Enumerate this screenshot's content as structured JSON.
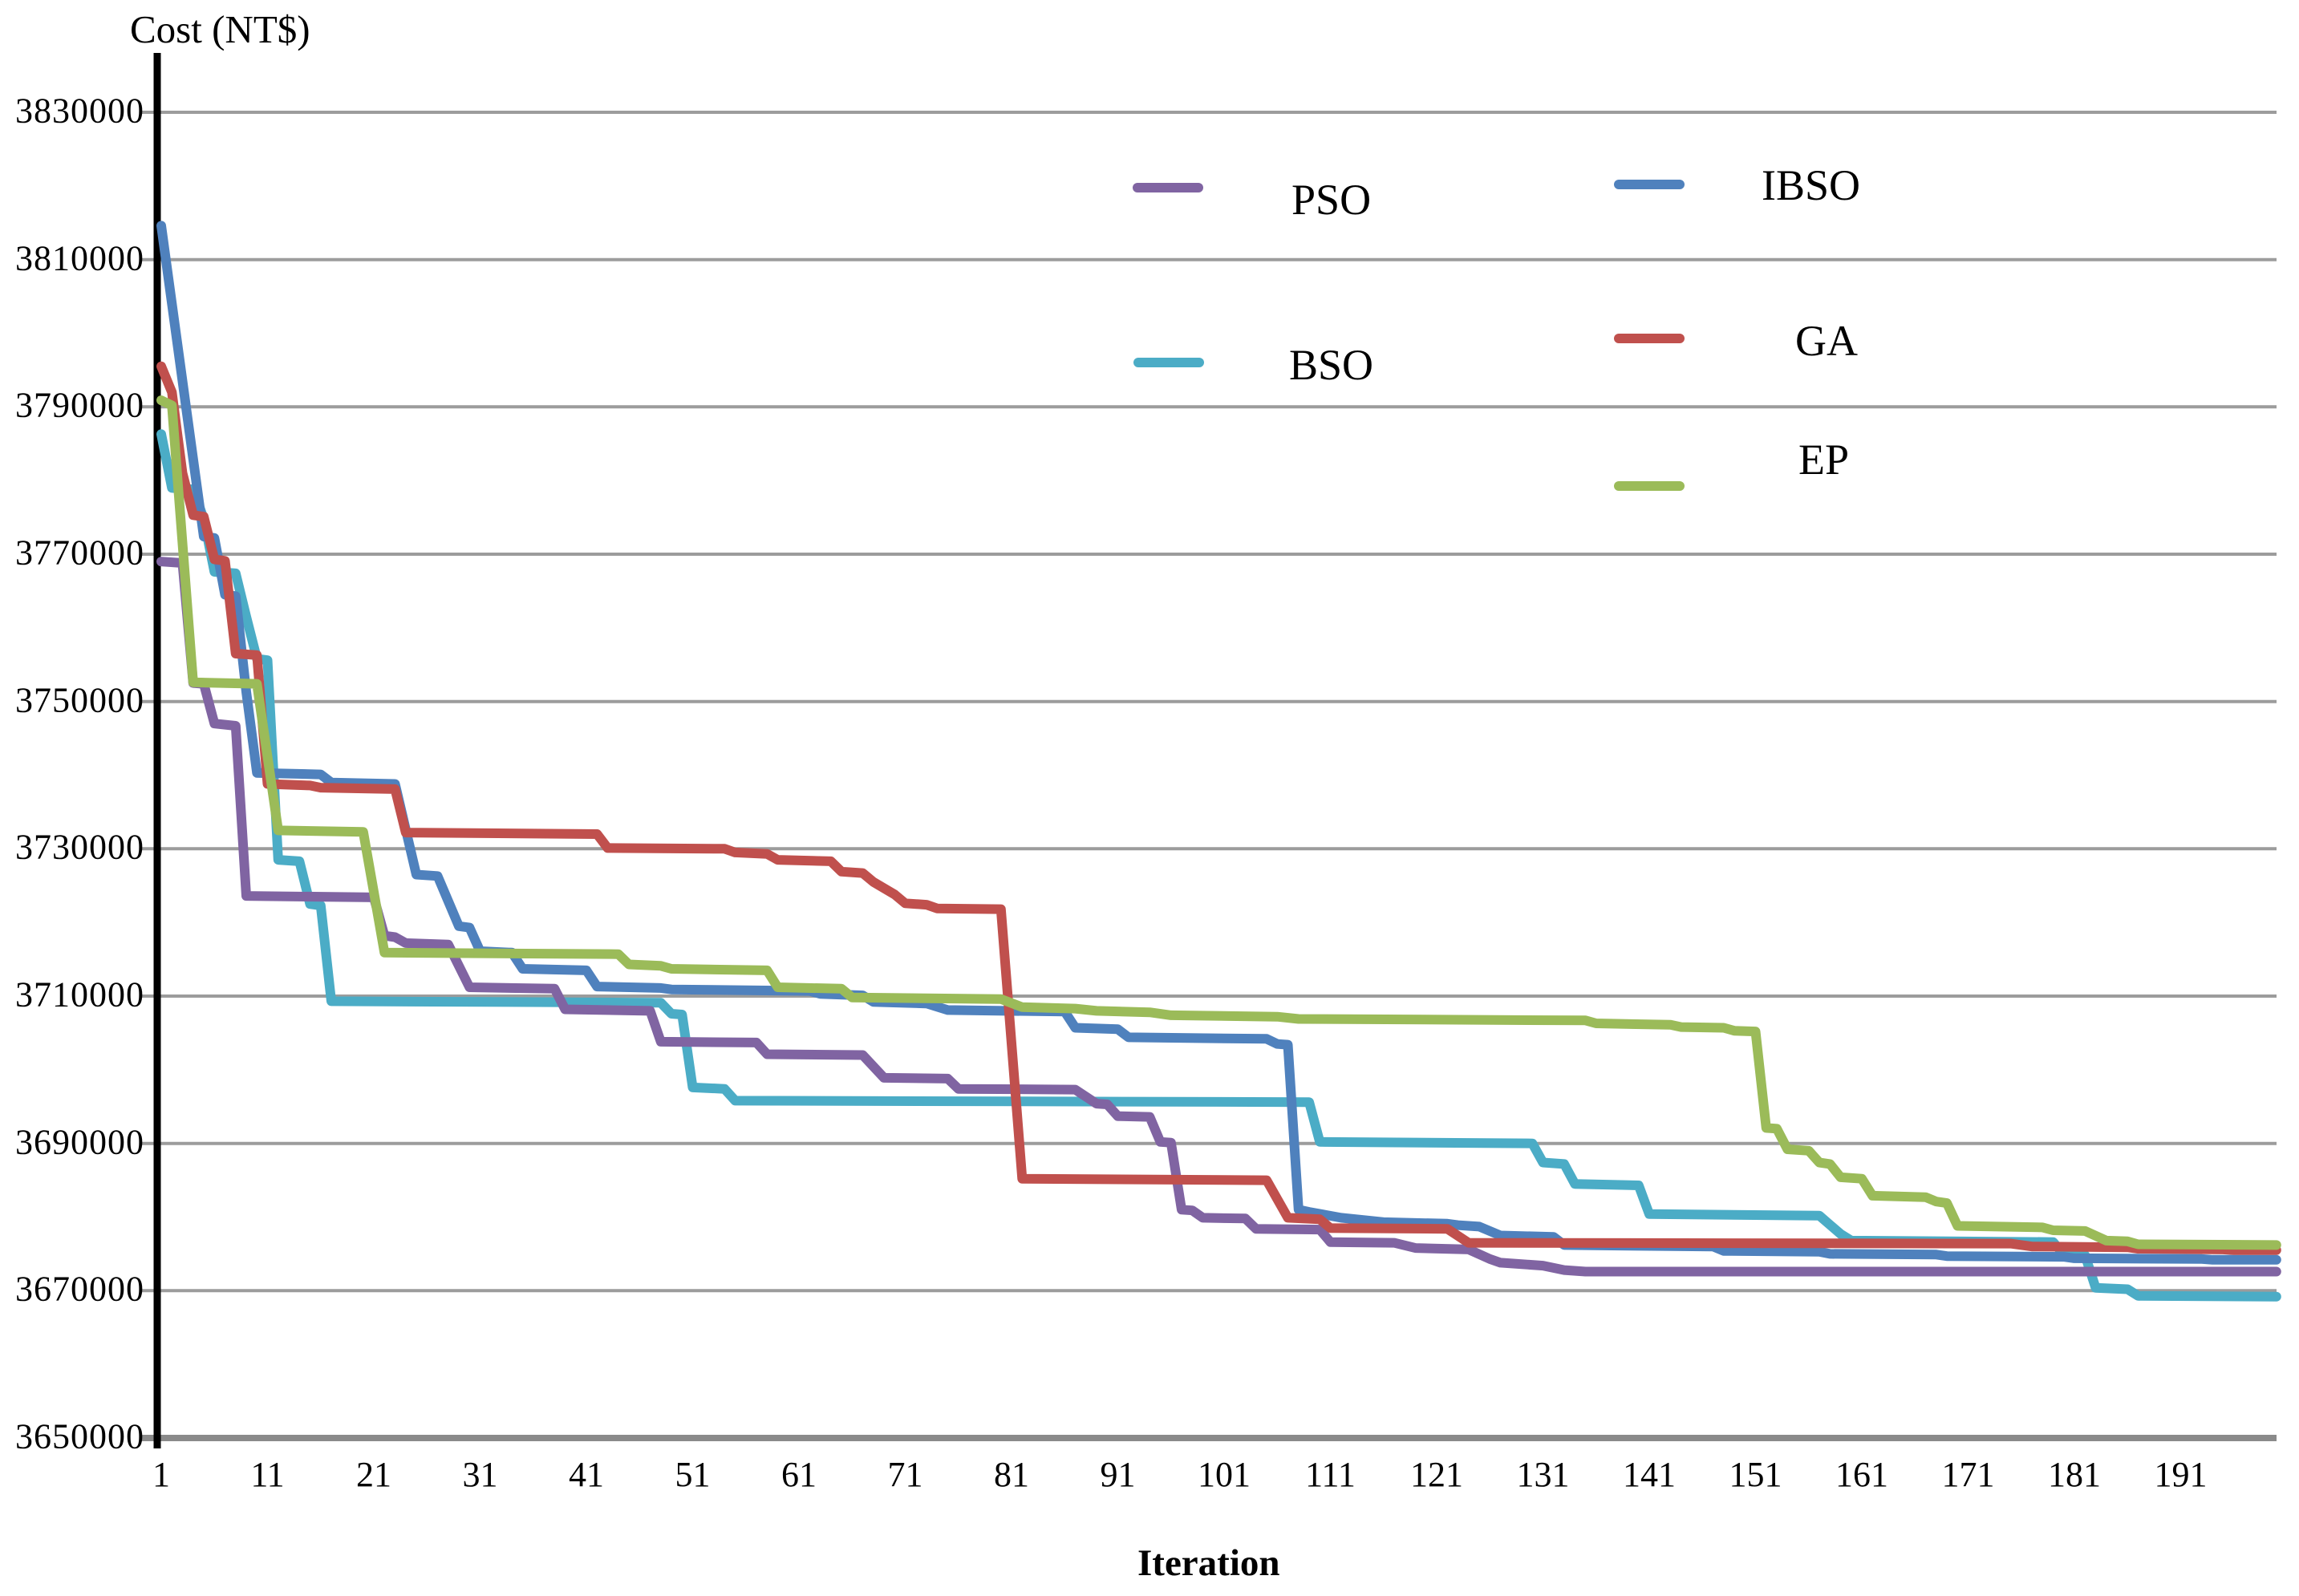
{
  "page": {
    "background": "#ffffff"
  },
  "axes": {
    "y_title": "Cost (NT$)",
    "x_title": "Iteration"
  },
  "legend": {
    "position": "upper-right",
    "columns": 2,
    "items": [
      {
        "label": "PSO",
        "color": "#8064A2"
      },
      {
        "label": "IBSO",
        "color": "#4F81BD"
      },
      {
        "label": "BSO",
        "color": "#4BACC6"
      },
      {
        "label": "GA",
        "color": "#C0504D"
      },
      {
        "label": "EP",
        "color": "#9BBB59"
      }
    ]
  },
  "chart_data": {
    "type": "line",
    "title": "Cost (NT$)",
    "xlabel": "Iteration",
    "ylabel": "Cost (NT$)",
    "xlim": [
      1,
      200
    ],
    "ylim": [
      3650000,
      3830000
    ],
    "yticks": [
      3650000,
      3670000,
      3690000,
      3710000,
      3730000,
      3750000,
      3770000,
      3790000,
      3810000,
      3830000
    ],
    "xticks": [
      1,
      11,
      21,
      31,
      41,
      51,
      61,
      71,
      81,
      91,
      101,
      111,
      121,
      131,
      141,
      151,
      161,
      171,
      181,
      191
    ],
    "grid": true,
    "gridline_color": "#9C9C9C",
    "baseline_color": "#8A8A8A",
    "axis_color": "#000000",
    "series": [
      {
        "name": "BSO",
        "color": "#4BACC6",
        "points": [
          [
            1,
            3786300
          ],
          [
            2,
            3779000
          ],
          [
            4,
            3778800
          ],
          [
            5,
            3774800
          ],
          [
            6,
            3767600
          ],
          [
            8,
            3767400
          ],
          [
            9,
            3761500
          ],
          [
            10,
            3755800
          ],
          [
            11,
            3755600
          ],
          [
            12,
            3728500
          ],
          [
            14,
            3728300
          ],
          [
            15,
            3722500
          ],
          [
            16,
            3722300
          ],
          [
            17,
            3709300
          ],
          [
            48,
            3709100
          ],
          [
            49,
            3707600
          ],
          [
            50,
            3707500
          ],
          [
            51,
            3697600
          ],
          [
            54,
            3697400
          ],
          [
            55,
            3695800
          ],
          [
            109,
            3695600
          ],
          [
            110,
            3690200
          ],
          [
            130,
            3690000
          ],
          [
            131,
            3687400
          ],
          [
            133,
            3687200
          ],
          [
            134,
            3684500
          ],
          [
            140,
            3684300
          ],
          [
            141,
            3680400
          ],
          [
            157,
            3680200
          ],
          [
            159,
            3677700
          ],
          [
            160,
            3676800
          ],
          [
            179,
            3676600
          ],
          [
            180,
            3674900
          ],
          [
            182,
            3674800
          ],
          [
            183,
            3670400
          ],
          [
            186,
            3670200
          ],
          [
            187,
            3669300
          ],
          [
            200,
            3669200
          ]
        ]
      },
      {
        "name": "IBSO",
        "color": "#4F81BD",
        "points": [
          [
            1,
            3814600
          ],
          [
            5,
            3772400
          ],
          [
            6,
            3772200
          ],
          [
            7,
            3764500
          ],
          [
            8,
            3764300
          ],
          [
            9,
            3751300
          ],
          [
            10,
            3740300
          ],
          [
            16,
            3740100
          ],
          [
            17,
            3739000
          ],
          [
            23,
            3738800
          ],
          [
            25,
            3726500
          ],
          [
            27,
            3726300
          ],
          [
            29,
            3719500
          ],
          [
            30,
            3719300
          ],
          [
            31,
            3716100
          ],
          [
            34,
            3715900
          ],
          [
            35,
            3713700
          ],
          [
            41,
            3713500
          ],
          [
            42,
            3711300
          ],
          [
            48,
            3711100
          ],
          [
            49,
            3710900
          ],
          [
            62,
            3710700
          ],
          [
            63,
            3710300
          ],
          [
            67,
            3710100
          ],
          [
            68,
            3709200
          ],
          [
            73,
            3709000
          ],
          [
            75,
            3708100
          ],
          [
            86,
            3707900
          ],
          [
            87,
            3705700
          ],
          [
            91,
            3705500
          ],
          [
            92,
            3704400
          ],
          [
            105,
            3704200
          ],
          [
            106,
            3703500
          ],
          [
            107,
            3703400
          ],
          [
            108,
            3681000
          ],
          [
            109,
            3680700
          ],
          [
            112,
            3679900
          ],
          [
            116,
            3679300
          ],
          [
            122,
            3679100
          ],
          [
            123,
            3678900
          ],
          [
            125,
            3678700
          ],
          [
            127,
            3677500
          ],
          [
            132,
            3677300
          ],
          [
            133,
            3676200
          ],
          [
            147,
            3676000
          ],
          [
            148,
            3675400
          ],
          [
            157,
            3675300
          ],
          [
            158,
            3675000
          ],
          [
            168,
            3674900
          ],
          [
            169,
            3674700
          ],
          [
            180,
            3674600
          ],
          [
            181,
            3674400
          ],
          [
            193,
            3674300
          ],
          [
            194,
            3674200
          ],
          [
            200,
            3674200
          ]
        ]
      },
      {
        "name": "PSO",
        "color": "#8064A2",
        "points": [
          [
            1,
            3769000
          ],
          [
            3,
            3768800
          ],
          [
            4,
            3752500
          ],
          [
            5,
            3752400
          ],
          [
            6,
            3747000
          ],
          [
            8,
            3746700
          ],
          [
            9,
            3723600
          ],
          [
            21,
            3723400
          ],
          [
            22,
            3718200
          ],
          [
            23,
            3718000
          ],
          [
            24,
            3717200
          ],
          [
            28,
            3717000
          ],
          [
            30,
            3711200
          ],
          [
            38,
            3711000
          ],
          [
            39,
            3708200
          ],
          [
            47,
            3708000
          ],
          [
            48,
            3703800
          ],
          [
            57,
            3703700
          ],
          [
            58,
            3702100
          ],
          [
            67,
            3702000
          ],
          [
            69,
            3698900
          ],
          [
            75,
            3698800
          ],
          [
            76,
            3697400
          ],
          [
            87,
            3697300
          ],
          [
            89,
            3695400
          ],
          [
            90,
            3695300
          ],
          [
            91,
            3693700
          ],
          [
            94,
            3693600
          ],
          [
            95,
            3690200
          ],
          [
            96,
            3690100
          ],
          [
            97,
            3681000
          ],
          [
            98,
            3680900
          ],
          [
            99,
            3679900
          ],
          [
            103,
            3679800
          ],
          [
            104,
            3678400
          ],
          [
            110,
            3678300
          ],
          [
            111,
            3676600
          ],
          [
            117,
            3676500
          ],
          [
            119,
            3675800
          ],
          [
            124,
            3675600
          ],
          [
            126,
            3674300
          ],
          [
            127,
            3673800
          ],
          [
            131,
            3673400
          ],
          [
            133,
            3672800
          ],
          [
            135,
            3672600
          ],
          [
            200,
            3672600
          ]
        ]
      },
      {
        "name": "GA",
        "color": "#C0504D",
        "points": [
          [
            1,
            3795500
          ],
          [
            2,
            3792000
          ],
          [
            3,
            3781000
          ],
          [
            4,
            3775300
          ],
          [
            5,
            3775100
          ],
          [
            6,
            3769300
          ],
          [
            7,
            3769100
          ],
          [
            8,
            3756500
          ],
          [
            10,
            3756300
          ],
          [
            11,
            3738800
          ],
          [
            15,
            3738600
          ],
          [
            16,
            3738300
          ],
          [
            23,
            3738100
          ],
          [
            24,
            3732200
          ],
          [
            42,
            3732000
          ],
          [
            43,
            3730100
          ],
          [
            54,
            3730000
          ],
          [
            55,
            3729500
          ],
          [
            58,
            3729300
          ],
          [
            59,
            3728500
          ],
          [
            64,
            3728300
          ],
          [
            65,
            3726900
          ],
          [
            67,
            3726700
          ],
          [
            68,
            3725500
          ],
          [
            70,
            3723800
          ],
          [
            71,
            3722600
          ],
          [
            73,
            3722400
          ],
          [
            74,
            3721900
          ],
          [
            80,
            3721800
          ],
          [
            82,
            3685200
          ],
          [
            105,
            3685000
          ],
          [
            107,
            3679900
          ],
          [
            110,
            3679700
          ],
          [
            111,
            3678500
          ],
          [
            122,
            3678400
          ],
          [
            124,
            3676500
          ],
          [
            175,
            3676400
          ],
          [
            177,
            3676000
          ],
          [
            186,
            3675900
          ],
          [
            187,
            3675700
          ],
          [
            195,
            3675600
          ],
          [
            196,
            3675500
          ],
          [
            200,
            3675500
          ]
        ]
      },
      {
        "name": "EP",
        "color": "#9BBB59",
        "points": [
          [
            1,
            3790900
          ],
          [
            2,
            3790200
          ],
          [
            4,
            3752600
          ],
          [
            10,
            3752400
          ],
          [
            12,
            3732500
          ],
          [
            20,
            3732300
          ],
          [
            22,
            3715900
          ],
          [
            44,
            3715700
          ],
          [
            45,
            3714300
          ],
          [
            48,
            3714100
          ],
          [
            49,
            3713700
          ],
          [
            58,
            3713500
          ],
          [
            59,
            3711200
          ],
          [
            65,
            3711000
          ],
          [
            66,
            3709800
          ],
          [
            80,
            3709600
          ],
          [
            82,
            3708500
          ],
          [
            87,
            3708300
          ],
          [
            89,
            3708000
          ],
          [
            94,
            3707800
          ],
          [
            96,
            3707400
          ],
          [
            106,
            3707200
          ],
          [
            108,
            3706900
          ],
          [
            135,
            3706700
          ],
          [
            136,
            3706300
          ],
          [
            143,
            3706100
          ],
          [
            144,
            3705800
          ],
          [
            148,
            3705700
          ],
          [
            149,
            3705300
          ],
          [
            151,
            3705200
          ],
          [
            152,
            3692100
          ],
          [
            153,
            3692000
          ],
          [
            154,
            3689200
          ],
          [
            156,
            3689000
          ],
          [
            157,
            3687400
          ],
          [
            158,
            3687200
          ],
          [
            159,
            3685400
          ],
          [
            161,
            3685200
          ],
          [
            162,
            3682900
          ],
          [
            167,
            3682700
          ],
          [
            168,
            3682100
          ],
          [
            169,
            3681900
          ],
          [
            170,
            3678800
          ],
          [
            178,
            3678600
          ],
          [
            179,
            3678200
          ],
          [
            182,
            3678100
          ],
          [
            184,
            3676800
          ],
          [
            186,
            3676700
          ],
          [
            187,
            3676300
          ],
          [
            200,
            3676200
          ]
        ]
      }
    ]
  }
}
